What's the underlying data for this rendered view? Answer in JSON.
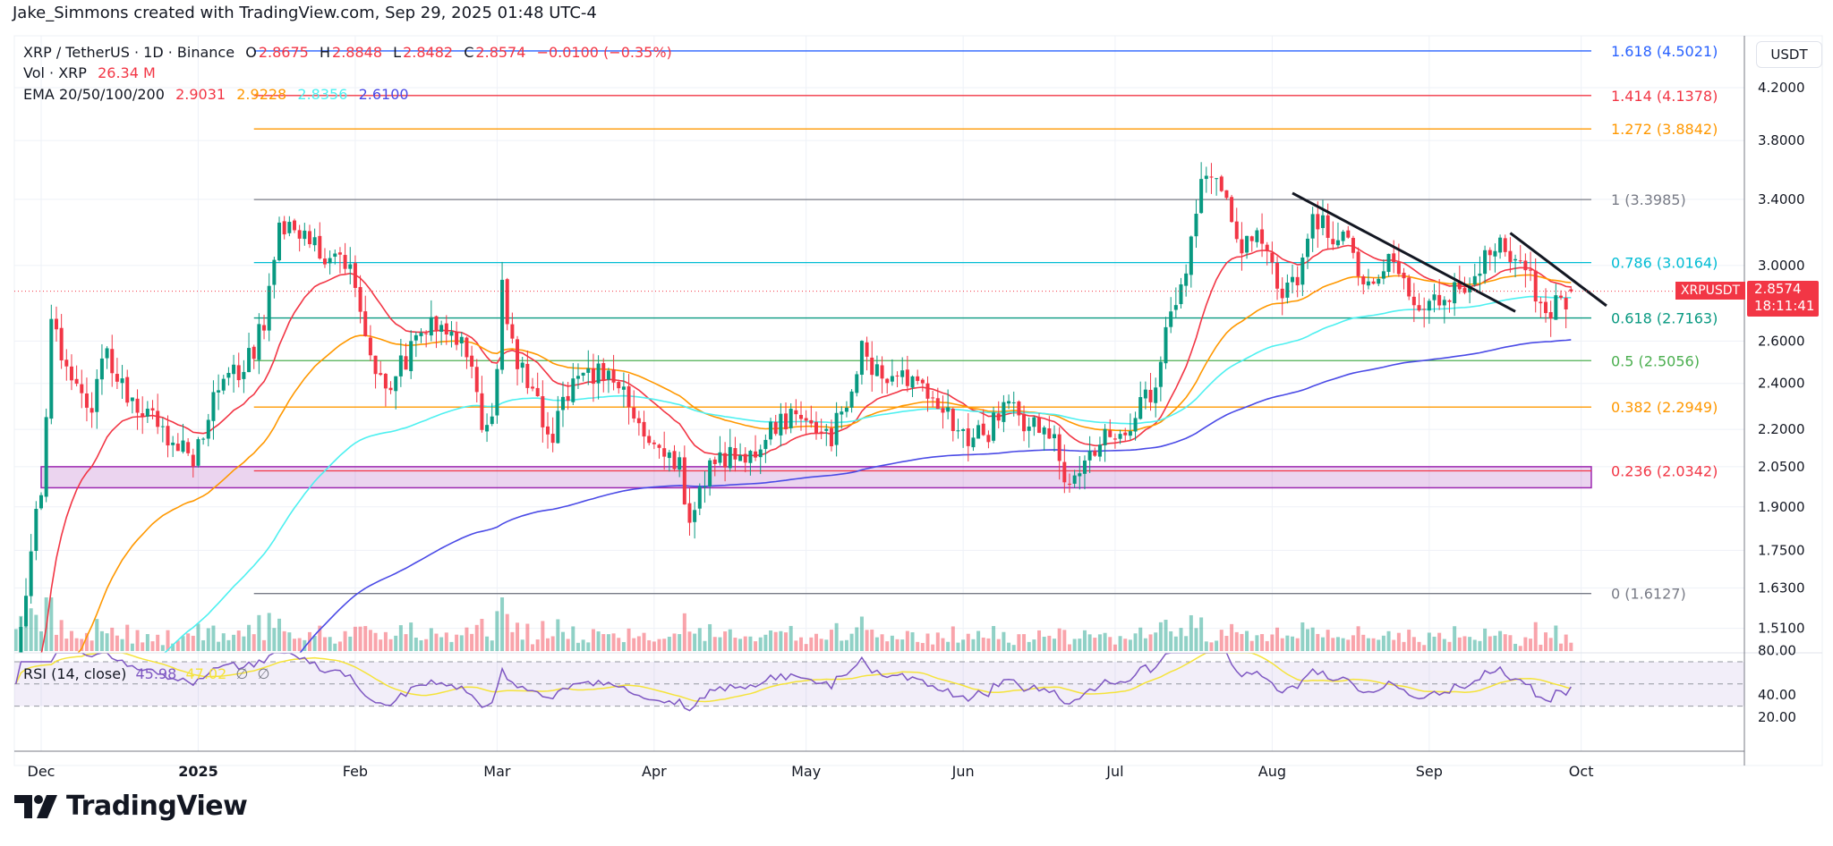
{
  "watermark": "Jake_Simmons created with TradingView.com, Sep 29, 2025 01:48 UTC-4",
  "legend": {
    "symbol": "XRP / TetherUS · 1D · Binance",
    "o_label": "O",
    "o": "2.8675",
    "h_label": "H",
    "h": "2.8848",
    "l_label": "L",
    "l": "2.8482",
    "c_label": "C",
    "c": "2.8574",
    "change": "−0.0100 (−0.35%)",
    "vol_label": "Vol · XRP",
    "vol": "26.34 M",
    "ema_label": "EMA 20/50/100/200",
    "ema_values": [
      "2.9031",
      "2.9228",
      "2.8356",
      "2.6100"
    ],
    "ema_colors": [
      "#f23645",
      "#ff9800",
      "#4ef0f0",
      "#4a4ae6"
    ]
  },
  "rsi": {
    "label": "RSI (14, close)",
    "value": "45.98",
    "ma": "47.02",
    "extra": [
      "∅",
      "∅"
    ],
    "line_color": "#7e57c2",
    "ma_color": "#f5e33a"
  },
  "axis": {
    "currency": "USDT",
    "price_ticks": [
      "4.2000",
      "3.8000",
      "3.4000",
      "3.0000",
      "2.6000",
      "2.4000",
      "2.2000",
      "2.0500",
      "1.9000",
      "1.7500",
      "1.6300",
      "1.5100"
    ],
    "rsi_ticks": [
      "80.00",
      "40.00",
      "20.00"
    ],
    "last_price": "2.8574",
    "countdown": "18:11:41",
    "symbol_tag": "XRPUSDT"
  },
  "time_ticks": [
    {
      "label": "Dec",
      "date": "2024-12-01",
      "bold": false
    },
    {
      "label": "2025",
      "date": "2025-01-01",
      "bold": true
    },
    {
      "label": "Feb",
      "date": "2025-02-01",
      "bold": false
    },
    {
      "label": "Mar",
      "date": "2025-03-01",
      "bold": false
    },
    {
      "label": "Apr",
      "date": "2025-04-01",
      "bold": false
    },
    {
      "label": "May",
      "date": "2025-05-01",
      "bold": false
    },
    {
      "label": "Jun",
      "date": "2025-06-01",
      "bold": false
    },
    {
      "label": "Jul",
      "date": "2025-07-01",
      "bold": false
    },
    {
      "label": "Aug",
      "date": "2025-08-01",
      "bold": false
    },
    {
      "label": "Sep",
      "date": "2025-09-01",
      "bold": false
    },
    {
      "label": "Oct",
      "date": "2025-10-01",
      "bold": false
    }
  ],
  "logo": "TradingView",
  "chart_data": {
    "type": "candlestick",
    "title": "XRP / TetherUS · 1D · Binance",
    "ylabel": "USDT",
    "yscale": "log",
    "ylim": [
      1.45,
      4.6
    ],
    "up_color": "#089981",
    "down_color": "#f23645",
    "close_anchors": [
      [
        "2024-11-26",
        1.45
      ],
      [
        "2024-11-29",
        1.75
      ],
      [
        "2024-12-01",
        1.95
      ],
      [
        "2024-12-03",
        2.65
      ],
      [
        "2024-12-05",
        2.55
      ],
      [
        "2024-12-07",
        2.45
      ],
      [
        "2024-12-11",
        2.3
      ],
      [
        "2024-12-14",
        2.55
      ],
      [
        "2024-12-19",
        2.3
      ],
      [
        "2024-12-23",
        2.25
      ],
      [
        "2024-12-27",
        2.15
      ],
      [
        "2024-12-31",
        2.08
      ],
      [
        "2025-01-05",
        2.4
      ],
      [
        "2025-01-10",
        2.45
      ],
      [
        "2025-01-14",
        2.7
      ],
      [
        "2025-01-17",
        3.25
      ],
      [
        "2025-01-22",
        3.15
      ],
      [
        "2025-01-27",
        3.05
      ],
      [
        "2025-01-31",
        3.05
      ],
      [
        "2025-02-02",
        2.7
      ],
      [
        "2025-02-05",
        2.45
      ],
      [
        "2025-02-08",
        2.4
      ],
      [
        "2025-02-12",
        2.55
      ],
      [
        "2025-02-16",
        2.7
      ],
      [
        "2025-02-20",
        2.65
      ],
      [
        "2025-02-23",
        2.55
      ],
      [
        "2025-02-26",
        2.25
      ],
      [
        "2025-02-28",
        2.2
      ],
      [
        "2025-03-02",
        2.85
      ],
      [
        "2025-03-04",
        2.55
      ],
      [
        "2025-03-08",
        2.4
      ],
      [
        "2025-03-11",
        2.15
      ],
      [
        "2025-03-15",
        2.35
      ],
      [
        "2025-03-21",
        2.45
      ],
      [
        "2025-03-24",
        2.45
      ],
      [
        "2025-03-29",
        2.2
      ],
      [
        "2025-04-02",
        2.1
      ],
      [
        "2025-04-06",
        2.05
      ],
      [
        "2025-04-08",
        1.8
      ],
      [
        "2025-04-10",
        1.95
      ],
      [
        "2025-04-13",
        2.1
      ],
      [
        "2025-04-19",
        2.08
      ],
      [
        "2025-04-25",
        2.2
      ],
      [
        "2025-04-29",
        2.27
      ],
      [
        "2025-05-05",
        2.15
      ],
      [
        "2025-05-08",
        2.25
      ],
      [
        "2025-05-12",
        2.55
      ],
      [
        "2025-05-16",
        2.45
      ],
      [
        "2025-05-22",
        2.38
      ],
      [
        "2025-05-27",
        2.3
      ],
      [
        "2025-06-01",
        2.18
      ],
      [
        "2025-06-06",
        2.2
      ],
      [
        "2025-06-10",
        2.3
      ],
      [
        "2025-06-15",
        2.2
      ],
      [
        "2025-06-19",
        2.15
      ],
      [
        "2025-06-22",
        1.98
      ],
      [
        "2025-06-25",
        2.1
      ],
      [
        "2025-06-30",
        2.2
      ],
      [
        "2025-07-05",
        2.25
      ],
      [
        "2025-07-09",
        2.4
      ],
      [
        "2025-07-12",
        2.8
      ],
      [
        "2025-07-15",
        2.95
      ],
      [
        "2025-07-18",
        3.5
      ],
      [
        "2025-07-22",
        3.5
      ],
      [
        "2025-07-25",
        3.1
      ],
      [
        "2025-07-29",
        3.15
      ],
      [
        "2025-08-03",
        2.85
      ],
      [
        "2025-08-07",
        3.0
      ],
      [
        "2025-08-09",
        3.3
      ],
      [
        "2025-08-12",
        3.2
      ],
      [
        "2025-08-16",
        3.1
      ],
      [
        "2025-08-20",
        2.9
      ],
      [
        "2025-08-24",
        3.0
      ],
      [
        "2025-08-28",
        2.85
      ],
      [
        "2025-09-01",
        2.8
      ],
      [
        "2025-09-05",
        2.82
      ],
      [
        "2025-09-10",
        2.95
      ],
      [
        "2025-09-14",
        3.1
      ],
      [
        "2025-09-18",
        3.05
      ],
      [
        "2025-09-22",
        2.85
      ],
      [
        "2025-09-25",
        2.75
      ],
      [
        "2025-09-29",
        2.8574
      ]
    ],
    "last_candle": {
      "date": "2025-09-29",
      "open": 2.8675,
      "high": 2.8848,
      "low": 2.8482,
      "close": 2.8574
    },
    "fib_levels": [
      {
        "price": 4.5021,
        "label": "1.618 (4.5021)",
        "color": "#2962ff"
      },
      {
        "price": 4.1378,
        "label": "1.414 (4.1378)",
        "color": "#f23645"
      },
      {
        "price": 3.8842,
        "label": "1.272 (3.8842)",
        "color": "#ff9800"
      },
      {
        "price": 3.3985,
        "label": "1 (3.3985)",
        "color": "#787b86"
      },
      {
        "price": 3.0164,
        "label": "0.786 (3.0164)",
        "color": "#00bcd4"
      },
      {
        "price": 2.7163,
        "label": "0.618 (2.7163)",
        "color": "#089981"
      },
      {
        "price": 2.5056,
        "label": "0.5 (2.5056)",
        "color": "#4caf50"
      },
      {
        "price": 2.2949,
        "label": "0.382 (2.2949)",
        "color": "#ff9800"
      },
      {
        "price": 2.0342,
        "label": "0.236 (2.0342)",
        "color": "#f23645"
      },
      {
        "price": 1.6127,
        "label": "0 (1.6127)",
        "color": "#787b86"
      }
    ],
    "fib_start": "2025-01-12",
    "fib_end": "2025-10-03",
    "support_zone": {
      "from": "2024-12-01",
      "to": "2025-10-03",
      "top": 2.05,
      "bottom": 1.97,
      "color": "#9c27b0"
    },
    "trendlines": [
      {
        "from": [
          "2025-08-05",
          3.44
        ],
        "to": [
          "2025-09-18",
          2.75
        ]
      },
      {
        "from": [
          "2025-09-17",
          3.19
        ],
        "to": [
          "2025-10-06",
          2.78
        ]
      }
    ],
    "rsi_levels": {
      "upper": 70,
      "middle": 50,
      "lower": 30
    }
  }
}
